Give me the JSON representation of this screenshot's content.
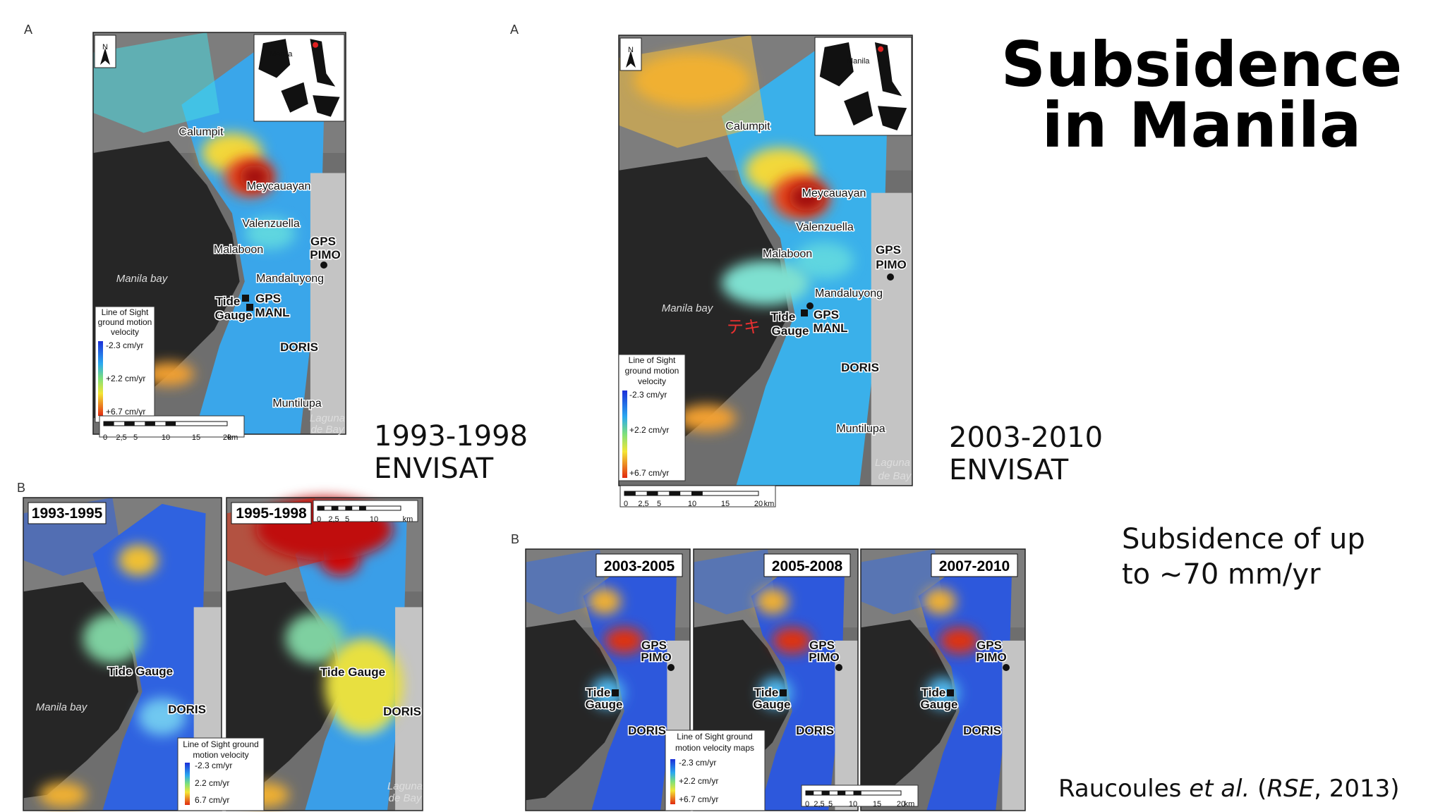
{
  "title": [
    "Subsidence",
    "in Manila"
  ],
  "period_top_left": [
    "1993-1998",
    "ENVISAT"
  ],
  "period_top_right": [
    "2003-2010",
    "ENVISAT"
  ],
  "summary": [
    "Subsidence of up",
    "to ~70 mm/yr"
  ],
  "citation": {
    "author": "Raucoules ",
    "etal": "et al.",
    "open": " (",
    "journal": "RSE",
    "rest": ", 2013)"
  },
  "left_map": {
    "panel": "A",
    "north": "N",
    "inset_label": "Manila",
    "places": [
      "Calumpit",
      "Meycauayan",
      "Valenzuella",
      "Malaboon",
      "GPS",
      "PIMO",
      "Manila bay",
      "Mandaluyong",
      "Tide",
      "Gauge",
      "GPS",
      "MANL",
      "DORIS",
      "Muntilupa",
      "Laguna",
      "de Bay"
    ],
    "legend": {
      "title": [
        "Line of Sight",
        "ground motion",
        "velocity"
      ],
      "items": [
        "-2.3 cm/yr",
        "+2.2 cm/yr",
        "+6.7 cm/yr"
      ]
    },
    "scale": [
      "0",
      "2,5",
      "5",
      "10",
      "15",
      "20",
      "km"
    ]
  },
  "right_map": {
    "panel": "A",
    "north": "N",
    "inset_label": "Manila",
    "places": [
      "Calumpit",
      "Meycauayan",
      "Valenzuella",
      "Malaboon",
      "GPS",
      "PIMO",
      "Manila bay",
      "Mandaluyong",
      "Tide",
      "Gauge",
      "GPS",
      "MANL",
      "DORIS",
      "Muntilupa",
      "Laguna",
      "de Bay"
    ],
    "overlay": "テキ",
    "legend": {
      "title": [
        "Line of Sight",
        "ground motion",
        "velocity"
      ],
      "items": [
        "-2.3 cm/yr",
        "+2.2 cm/yr",
        "+6.7 cm/yr"
      ]
    },
    "scale": [
      "0",
      "2,5",
      "5",
      "10",
      "15",
      "20",
      "km"
    ]
  },
  "left_series": {
    "panel": "B",
    "frames": [
      "1993-1995",
      "1995-1998"
    ],
    "places": [
      "Tide Gauge",
      "Manila bay",
      "DORIS",
      "Tide Gauge",
      "DORIS",
      "Laguna",
      "de Bay"
    ],
    "legend": {
      "title": [
        "Line of Sight ground",
        "motion velocity"
      ],
      "items": [
        "-2.3 cm/yr",
        "2.2 cm/yr",
        "6.7 cm/yr"
      ]
    },
    "scale": [
      "0",
      "2,5",
      "5",
      "10",
      "km"
    ]
  },
  "right_series": {
    "panel": "B",
    "frames": [
      "2003-2005",
      "2005-2008",
      "2007-2010"
    ],
    "panel_places": [
      [
        "GPS",
        "PIMO",
        "Tide",
        "Gauge",
        "DORIS"
      ],
      [
        "GPS",
        "PIMO",
        "Tide",
        "Gauge",
        "DORIS"
      ],
      [
        "GPS",
        "PIMO",
        "Tide",
        "Gauge",
        "DORIS"
      ]
    ],
    "legend": {
      "title": [
        "Line of Sight ground",
        "motion velocity maps"
      ],
      "items": [
        "-2.3 cm/yr",
        "+2.2 cm/yr",
        "+6.7 cm/yr"
      ]
    },
    "scale": [
      "0",
      "2,5",
      "5",
      "10",
      "15",
      "20",
      "km"
    ]
  }
}
